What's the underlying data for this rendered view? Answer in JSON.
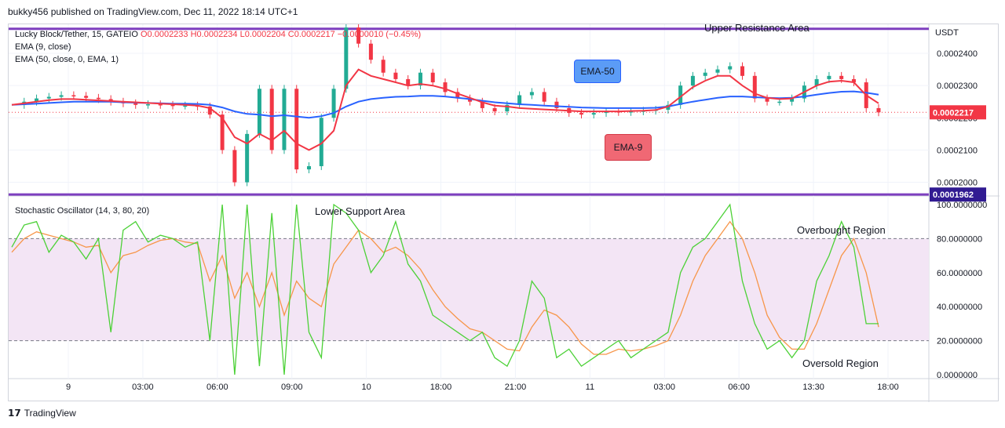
{
  "header": {
    "published": "bukky456 published on TradingView.com, Dec 11, 2022 18:14 UTC+1"
  },
  "legend": {
    "symbol_line": "Lucky Block/Tether, 15, GATEIO",
    "ohlc": "O0.0002233  H0.0002234  L0.0002204  C0.0002217  −0.0000010 (−0.45%)",
    "ema9": "EMA (9, close)",
    "ema50": "EMA (50, close, 0, EMA, 1)",
    "stoch": "Stochastic Oscillator (14, 3, 80, 20)"
  },
  "annotations": {
    "upper_resistance": "Upper Resistance Area",
    "lower_support": "Lower Support Area",
    "overbought": "Overbought Region",
    "oversold": "Oversold Region",
    "ema50_label": "EMA-50",
    "ema9_label": "EMA-9"
  },
  "price_axis": {
    "currency": "USDT",
    "ticks": [
      "0.0002400",
      "0.0002300",
      "0.0002200",
      "0.0002100",
      "0.0002000"
    ],
    "current_price_label": "0.0002217",
    "lower_line_label": "0.0001962"
  },
  "stoch_axis": {
    "ticks": [
      "100.0000000",
      "80.0000000",
      "60.0000000",
      "40.0000000",
      "20.0000000",
      "0.0000000"
    ]
  },
  "time_axis": {
    "ticks": [
      "9",
      "03:00",
      "06:00",
      "09:00",
      "10",
      "18:00",
      "21:00",
      "11",
      "03:00",
      "06:00",
      "13:30",
      "18:00"
    ]
  },
  "footer": {
    "brand": "TradingView"
  },
  "colors": {
    "up": "#22ab94",
    "down": "#f23645",
    "ema9": "#f23645",
    "ema50": "#2962ff",
    "resistance_line": "#7e3fbf",
    "stoch_k": "#4cd137",
    "stoch_d": "#f7964a",
    "stoch_band": "#f3e5f5",
    "callout_blue": "#5b9cf6",
    "callout_red": "#f06874"
  },
  "chart_data": {
    "type": "candlestick",
    "title": "Lucky Block/Tether, 15, GATEIO",
    "ylim": [
      0.000196,
      0.000249
    ],
    "resistance_level": 0.0002476,
    "support_level": 0.0001962,
    "last_close": 0.0002217,
    "x_labels": [
      "9",
      "03:00",
      "06:00",
      "09:00",
      "10",
      "18:00",
      "21:00",
      "11",
      "03:00",
      "06:00",
      "13:30",
      "18:00"
    ],
    "price_path": [
      0.000224,
      0.000225,
      0.000226,
      0.0002265,
      0.000227,
      0.0002268,
      0.0002262,
      0.0002258,
      0.000225,
      0.0002245,
      0.000224,
      0.0002242,
      0.000224,
      0.0002238,
      0.0002238,
      0.0002235,
      0.000221,
      0.00021,
      0.0002,
      0.000215,
      0.000229,
      0.00021,
      0.000229,
      0.000204,
      0.000205,
      0.00022,
      0.000229,
      0.000248,
      0.000243,
      0.000238,
      0.000234,
      0.000232,
      0.00023,
      0.000234,
      0.000231,
      0.000228,
      0.000226,
      0.000225,
      0.000223,
      0.000222,
      0.000224,
      0.000227,
      0.000228,
      0.000225,
      0.000223,
      0.0002215,
      0.000221,
      0.0002215,
      0.000222,
      0.0002218,
      0.000222,
      0.0002222,
      0.0002225,
      0.000224,
      0.00023,
      0.000233,
      0.000234,
      0.000235,
      0.000236,
      0.000233,
      0.000226,
      0.000225,
      0.000225,
      0.000226,
      0.00023,
      0.000232,
      0.000233,
      0.000232,
      0.000231,
      0.000223,
      0.0002217
    ],
    "ema9": [
      0.000224,
      0.0002245,
      0.000225,
      0.0002255,
      0.0002258,
      0.0002258,
      0.0002256,
      0.0002254,
      0.0002252,
      0.000225,
      0.0002248,
      0.0002246,
      0.0002244,
      0.0002242,
      0.000224,
      0.0002238,
      0.000223,
      0.00022,
      0.000214,
      0.000212,
      0.000215,
      0.000213,
      0.000216,
      0.000212,
      0.00021,
      0.000212,
      0.000216,
      0.00023,
      0.000235,
      0.000233,
      0.000232,
      0.000231,
      0.00023,
      0.0002305,
      0.00023,
      0.000229,
      0.0002275,
      0.0002262,
      0.0002248,
      0.0002238,
      0.0002235,
      0.000223,
      0.0002228,
      0.0002226,
      0.0002224,
      0.0002222,
      0.000222,
      0.000222,
      0.000222,
      0.000222,
      0.0002221,
      0.0002222,
      0.0002224,
      0.0002235,
      0.0002265,
      0.0002295,
      0.0002315,
      0.000233,
      0.000233,
      0.00023,
      0.0002275,
      0.0002262,
      0.0002258,
      0.000226,
      0.000228,
      0.00023,
      0.0002312,
      0.0002315,
      0.000231,
      0.000227,
      0.0002245
    ],
    "ema50": [
      0.000224,
      0.0002242,
      0.0002244,
      0.0002246,
      0.0002248,
      0.000225,
      0.000225,
      0.000225,
      0.000225,
      0.0002248,
      0.0002247,
      0.0002246,
      0.0002245,
      0.0002244,
      0.0002244,
      0.0002243,
      0.000224,
      0.0002232,
      0.000222,
      0.0002212,
      0.000221,
      0.0002205,
      0.0002208,
      0.0002204,
      0.00022,
      0.0002205,
      0.0002215,
      0.0002235,
      0.000225,
      0.0002258,
      0.0002262,
      0.0002265,
      0.0002266,
      0.0002268,
      0.0002268,
      0.0002266,
      0.0002262,
      0.0002258,
      0.0002253,
      0.0002248,
      0.0002245,
      0.0002242,
      0.000224,
      0.0002238,
      0.0002236,
      0.0002234,
      0.0002232,
      0.0002231,
      0.000223,
      0.000223,
      0.000223,
      0.000223,
      0.0002231,
      0.0002235,
      0.0002243,
      0.000225,
      0.0002256,
      0.0002262,
      0.0002266,
      0.0002266,
      0.0002264,
      0.0002262,
      0.0002261,
      0.0002262,
      0.0002266,
      0.0002272,
      0.0002277,
      0.0002281,
      0.0002282,
      0.0002278,
      0.0002272
    ],
    "stoch_k": [
      75,
      88,
      90,
      72,
      82,
      78,
      68,
      80,
      25,
      85,
      90,
      78,
      82,
      80,
      75,
      78,
      20,
      100,
      0,
      100,
      5,
      95,
      0,
      100,
      25,
      10,
      100,
      95,
      85,
      60,
      70,
      90,
      65,
      55,
      35,
      30,
      25,
      20,
      25,
      10,
      5,
      20,
      55,
      45,
      10,
      15,
      5,
      10,
      15,
      20,
      10,
      15,
      20,
      25,
      60,
      75,
      80,
      90,
      100,
      55,
      30,
      15,
      20,
      10,
      20,
      55,
      70,
      90,
      75,
      30,
      30
    ],
    "stoch_d": [
      72,
      80,
      84,
      82,
      80,
      78,
      75,
      76,
      60,
      70,
      72,
      76,
      79,
      80,
      78,
      77,
      55,
      70,
      45,
      60,
      40,
      60,
      35,
      55,
      45,
      40,
      65,
      75,
      85,
      80,
      72,
      75,
      70,
      62,
      50,
      40,
      33,
      27,
      25,
      20,
      15,
      14,
      28,
      38,
      35,
      28,
      18,
      12,
      12,
      15,
      14,
      15,
      17,
      20,
      35,
      55,
      70,
      80,
      90,
      80,
      60,
      35,
      22,
      15,
      15,
      30,
      50,
      70,
      80,
      60,
      28
    ]
  }
}
